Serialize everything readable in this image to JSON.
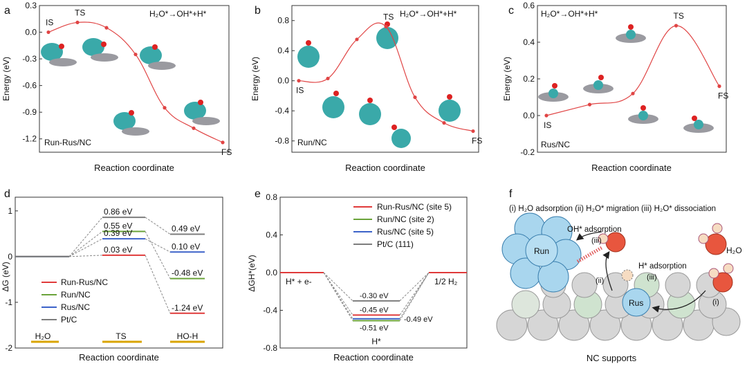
{
  "panels": {
    "a": {
      "letter": "a",
      "reaction": "H₂O*→OH*+H*",
      "catalyst": "Run-Rus/NC",
      "ylabel": "Energy (eV)",
      "xlabel": "Reaction coordinate"
    },
    "b": {
      "letter": "b",
      "reaction": "H₂O*→OH*+H*",
      "catalyst": "Run/NC",
      "ylabel": "Energy (eV)",
      "xlabel": "Reaction coordinate"
    },
    "c": {
      "letter": "c",
      "reaction": "H₂O*→OH*+H*",
      "catalyst": "Rus/NC",
      "ylabel": "Energy (eV)",
      "xlabel": "Reaction coordinate"
    },
    "d": {
      "letter": "d",
      "ylabel": "ΔG (eV)",
      "xlabel": "Reaction coordinate"
    },
    "e": {
      "letter": "e",
      "ylabel": "ΔGH*(eV)",
      "xlabel": "Reaction coordinate"
    },
    "f": {
      "letter": "f",
      "steps": "(i) H₂O adsorption  (ii) H₂O* migration  (iii) H₂O* dissociation",
      "oh_label": "OH* adsorption",
      "h_label": "H* adsorption",
      "run_label": "Run",
      "rus_label": "Rus",
      "h2o_label": "H₂O",
      "support_label": "NC supports",
      "step_i": "(i)",
      "step_ii": "(ii)",
      "step_iii": "(iii)"
    }
  },
  "chart_data": [
    {
      "type": "line",
      "panel": "a",
      "title": "H2O*→OH*+H*",
      "xlabel": "Reaction coordinate",
      "ylabel": "Energy (eV)",
      "ylim": [
        -1.35,
        0.3
      ],
      "yticks": [
        "0.3",
        "0.0",
        "-0.3",
        "-0.6",
        "-0.9",
        "-1.2"
      ],
      "x": [
        0,
        1,
        2,
        3,
        4,
        5,
        6
      ],
      "y": [
        0.0,
        0.11,
        0.05,
        -0.25,
        -0.85,
        -1.08,
        -1.24
      ],
      "labels": [
        {
          "x": 0,
          "text": "IS"
        },
        {
          "x": 1,
          "text": "TS"
        },
        {
          "x": 6,
          "text": "FS"
        }
      ],
      "legend": "Run-Rus/NC"
    },
    {
      "type": "line",
      "panel": "b",
      "title": "H2O*→OH*+H*",
      "xlabel": "Reaction coordinate",
      "ylabel": "Energy (eV)",
      "ylim": [
        -0.95,
        1.0
      ],
      "yticks": [
        "0.8",
        "0.4",
        "0.0",
        "-0.4",
        "-0.8"
      ],
      "x": [
        0,
        1,
        2,
        3,
        4,
        5,
        6
      ],
      "y": [
        0.0,
        0.03,
        0.55,
        0.72,
        -0.22,
        -0.56,
        -0.67
      ],
      "labels": [
        {
          "x": 0,
          "text": "IS"
        },
        {
          "x": 3,
          "text": "TS"
        },
        {
          "x": 6,
          "text": "FS"
        }
      ],
      "legend": "Run/NC"
    },
    {
      "type": "line",
      "panel": "c",
      "title": "H2O*→OH*+H*",
      "xlabel": "Reaction coordinate",
      "ylabel": "Energy (eV)",
      "ylim": [
        -0.2,
        0.6
      ],
      "yticks": [
        "0.6",
        "0.4",
        "0.2",
        "0.0",
        "-0.2"
      ],
      "x": [
        0,
        1,
        2,
        3,
        4
      ],
      "y": [
        0.0,
        0.06,
        0.12,
        0.49,
        0.16
      ],
      "labels": [
        {
          "x": 0,
          "text": "IS"
        },
        {
          "x": 3,
          "text": "TS"
        },
        {
          "x": 4,
          "text": "FS"
        }
      ],
      "legend": "Rus/NC"
    },
    {
      "type": "energy-levels",
      "panel": "d",
      "xlabel": "Reaction coordinate",
      "ylabel": "ΔG (eV)",
      "ylim": [
        -2,
        1.3
      ],
      "yticks": [
        "1",
        "0",
        "-1",
        "-2"
      ],
      "categories": [
        "H₂O",
        "TS",
        "HO-H"
      ],
      "series": [
        {
          "name": "Run-Rus/NC",
          "color": "#e03a3a",
          "values": [
            0,
            0.03,
            -1.24
          ]
        },
        {
          "name": "Run/NC",
          "color": "#6aa33a",
          "values": [
            0,
            0.55,
            -0.48
          ]
        },
        {
          "name": "Rus/NC",
          "color": "#3b62c9",
          "values": [
            0,
            0.39,
            0.1
          ]
        },
        {
          "name": "Pt/C",
          "color": "#7d7d7d",
          "values": [
            0,
            0.86,
            0.49
          ]
        }
      ],
      "value_labels": {
        "ts": [
          "0.86 eV",
          "0.55 eV",
          "0.39 eV",
          "0.03 eV"
        ],
        "fs": [
          "0.49 eV",
          "0.10 eV",
          "-0.48 eV",
          "-1.24 eV"
        ]
      }
    },
    {
      "type": "energy-levels",
      "panel": "e",
      "xlabel": "Reaction coordinate",
      "ylabel": "ΔGH*(eV)",
      "ylim": [
        -0.8,
        0.8
      ],
      "yticks": [
        "0.8",
        "0.4",
        "0.0",
        "-0.4",
        "-0.8"
      ],
      "categories": [
        "H* + e-",
        "H*",
        "1/2 H₂"
      ],
      "series": [
        {
          "name": "Run-Rus/NC (site 5)",
          "color": "#e03a3a",
          "value": -0.45
        },
        {
          "name": "Run/NC (site 2)",
          "color": "#6aa33a",
          "value": -0.51
        },
        {
          "name": "Rus/NC (site 5)",
          "color": "#3b62c9",
          "value": -0.49
        },
        {
          "name": "Pt/C (111)",
          "color": "#7d7d7d",
          "value": -0.3
        }
      ],
      "value_labels": [
        "-0.30 eV",
        "-0.45 eV",
        "-0.51 eV",
        "-0.49 eV"
      ]
    }
  ]
}
